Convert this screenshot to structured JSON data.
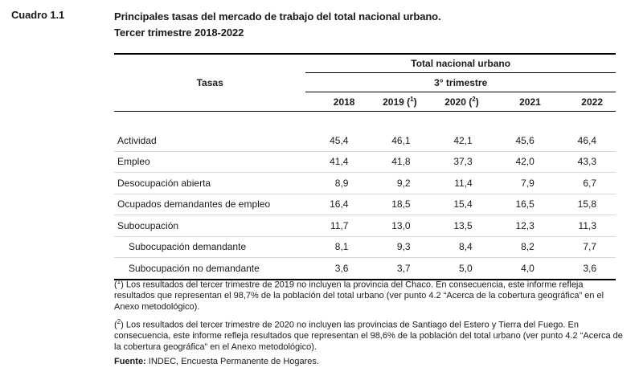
{
  "cuadro": "Cuadro 1.1",
  "title": "Principales tasas del mercado de trabajo del total nacional urbano.",
  "subtitle": "Tercer trimestre 2018-2022",
  "table": {
    "rowHeader": "Tasas",
    "groupHeader": "Total nacional urbano",
    "subHeader": "3° trimestre",
    "years": [
      {
        "label": "2018",
        "note": ""
      },
      {
        "label": "2019 (",
        "note": "1",
        "close": ")"
      },
      {
        "label": "2020 (",
        "note": "2",
        "close": ")"
      },
      {
        "label": "2021",
        "note": ""
      },
      {
        "label": "2022",
        "note": ""
      }
    ],
    "rows": [
      {
        "label": "Actividad",
        "values": [
          "45,4",
          "46,1",
          "42,1",
          "45,6",
          "46,4"
        ]
      },
      {
        "label": "Empleo",
        "values": [
          "41,4",
          "41,8",
          "37,3",
          "42,0",
          "43,3"
        ]
      },
      {
        "label": "Desocupación abierta",
        "values": [
          "8,9",
          "9,2",
          "11,4",
          "7,9",
          "6,7"
        ]
      },
      {
        "label": "Ocupados demandantes de empleo",
        "values": [
          "16,4",
          "18,5",
          "15,4",
          "16,5",
          "15,8"
        ]
      },
      {
        "label": "Subocupación",
        "values": [
          "11,7",
          "13,0",
          "13,5",
          "12,3",
          "11,3"
        ]
      },
      {
        "label": "Subocupación demandante",
        "values": [
          "8,1",
          "9,3",
          "8,4",
          "8,2",
          "7,7"
        ]
      },
      {
        "label": "Subocupación no demandante",
        "values": [
          "3,6",
          "3,7",
          "5,0",
          "4,0",
          "3,6"
        ]
      }
    ]
  },
  "notes": {
    "note1_mark": "1",
    "note1_text": " Los resultados del tercer trimestre de 2019 no incluyen la provincia del Chaco. En consecuencia, este informe refleja resultados que representan el 98,7% de la población del total urbano (ver punto 4.2 “Acerca de la cobertura geográfica” en el Anexo metodológico).",
    "note2_mark": "2",
    "note2_text": " Los resultados del tercer trimestre de 2020 no incluyen las provincias de Santiago del Estero y Tierra del Fuego. En consecuencia, este informe refleja resultados que representan el 98,6% de la población del total urbano (ver punto 4.2 “Acerca de la cobertura geográfica” en el Anexo metodológico).",
    "fuente_label": "Fuente:",
    "fuente_text": " INDEC, Encuesta Permanente de Hogares."
  }
}
